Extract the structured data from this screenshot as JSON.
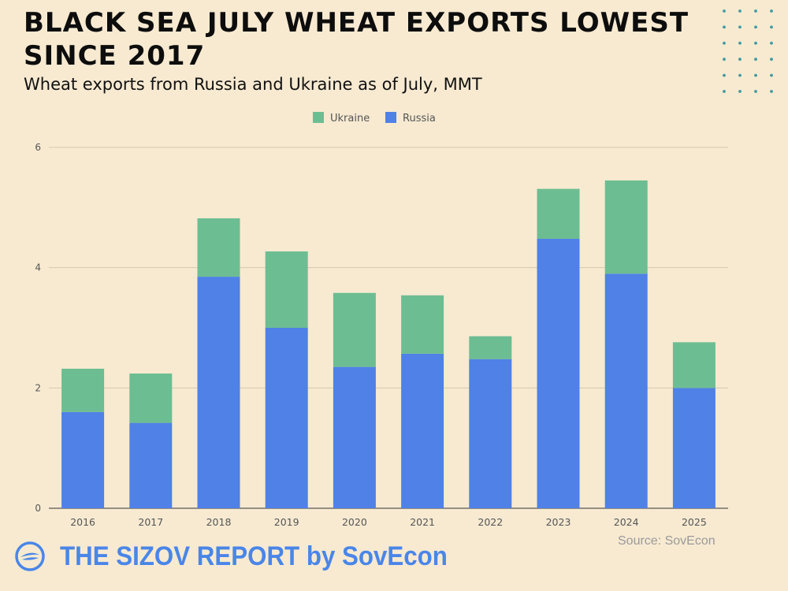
{
  "header": {
    "title": "BLACK SEA JULY WHEAT EXPORTS LOWEST SINCE 2017",
    "subtitle": "Wheat exports from Russia and Ukraine as of July, MMT"
  },
  "footer": {
    "source": "Source: SovEcon",
    "brand": "THE SIZOV REPORT by SovEcon",
    "logo_icon": "sizov-logo-icon"
  },
  "colors": {
    "background": "#f7ead1",
    "russia": "#4f81e6",
    "ukraine": "#6dbd92",
    "gridline": "#d4c8ae",
    "dots": "#3f9aa0",
    "brand": "#4a86e8"
  },
  "chart_data": {
    "type": "bar",
    "stacked": true,
    "title": "",
    "xlabel": "",
    "ylabel": "",
    "categories": [
      "2016",
      "2017",
      "2018",
      "2019",
      "2020",
      "2021",
      "2022",
      "2023",
      "2024",
      "2025"
    ],
    "series": [
      {
        "name": "Russia",
        "color": "#4f81e6",
        "values": [
          1.6,
          1.42,
          3.85,
          3.0,
          2.35,
          2.57,
          2.48,
          4.48,
          3.9,
          2.0
        ]
      },
      {
        "name": "Ukraine",
        "color": "#6dbd92",
        "values": [
          0.72,
          0.82,
          0.97,
          1.27,
          1.23,
          0.97,
          0.38,
          0.83,
          1.55,
          0.76
        ]
      }
    ],
    "ylim": [
      0,
      6
    ],
    "yticks": [
      "0",
      "2",
      "4",
      "6"
    ],
    "legend": {
      "placement": "top-center",
      "order": [
        "Ukraine",
        "Russia"
      ]
    },
    "grid": true
  }
}
